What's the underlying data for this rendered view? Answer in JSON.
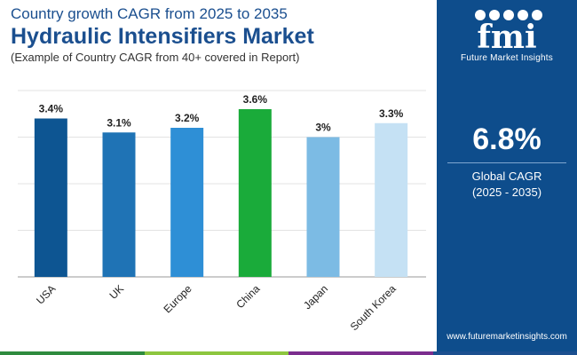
{
  "header": {
    "subtitle": "Country growth CAGR from 2025 to 2035",
    "title": "Hydraulic Intensifiers Market",
    "note": "(Example of Country CAGR from 40+ covered in Report)"
  },
  "sidebar": {
    "logo_text": "Future Market Insights",
    "global_cagr_value": "6.8%",
    "global_cagr_label": "Global CAGR",
    "global_cagr_period": "(2025 - 2035)",
    "website": "www.futuremarketinsights.com"
  },
  "colors": {
    "title": "#1b4f8f",
    "sidebar_bg": "#0e4d8c",
    "bottom_strip": [
      "#2e8b3e",
      "#8dc63f",
      "#7b2d8e",
      "#1b4f8f"
    ]
  },
  "chart_data": {
    "type": "bar",
    "categories": [
      "USA",
      "UK",
      "Europe",
      "China",
      "Japan",
      "South Korea"
    ],
    "values": [
      3.4,
      3.1,
      3.2,
      3.6,
      3.0,
      3.3
    ],
    "data_labels": [
      "3.4%",
      "3.1%",
      "3.2%",
      "3.6%",
      "3%",
      "3.3%"
    ],
    "colors": [
      "#0d5592",
      "#1f73b5",
      "#2e8fd6",
      "#1aab3a",
      "#7cbbe4",
      "#c5e1f4"
    ],
    "ylim": [
      0,
      4
    ],
    "grid": true,
    "xlabel": "",
    "ylabel": ""
  }
}
